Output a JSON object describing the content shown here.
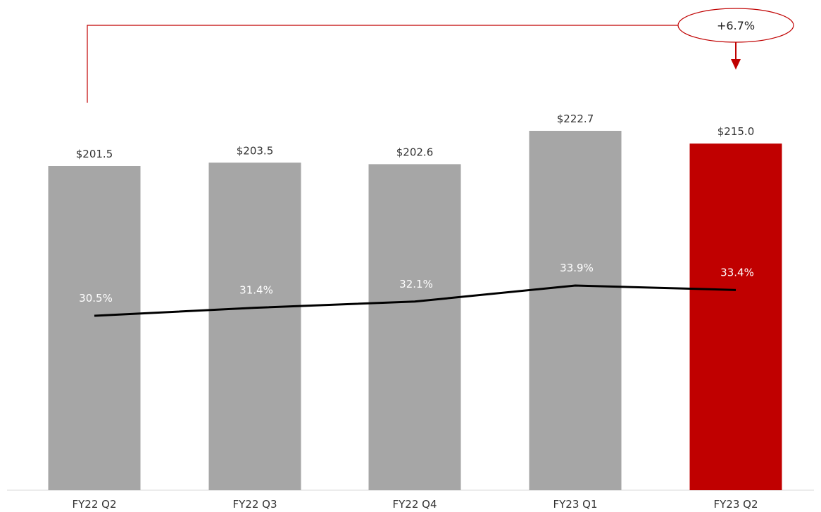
{
  "chart_data": {
    "type": "bar",
    "categories": [
      "FY22 Q2",
      "FY22 Q3",
      "FY22 Q4",
      "FY23 Q1",
      "FY23 Q2"
    ],
    "series": [
      {
        "values": [
          201.5,
          203.5,
          202.6,
          222.7,
          215.0
        ],
        "value_labels": [
          "$201.5",
          "$203.5",
          "$202.6",
          "$222.7",
          "$215.0"
        ]
      },
      {
        "type": "line",
        "values": [
          30.5,
          31.4,
          32.1,
          33.9,
          33.4
        ],
        "value_labels": [
          "30.5%",
          "31.4%",
          "32.1%",
          "33.9%",
          "33.4%"
        ]
      }
    ],
    "bar_colors": [
      "#a6a6a6",
      "#a6a6a6",
      "#a6a6a6",
      "#a6a6a6",
      "#c00000"
    ],
    "line_color": "#000000",
    "annotation": {
      "text": "+6.7%",
      "from": "FY22 Q2",
      "to": "FY23 Q2",
      "color": "#c00000"
    },
    "grid": false,
    "legend": "none"
  }
}
